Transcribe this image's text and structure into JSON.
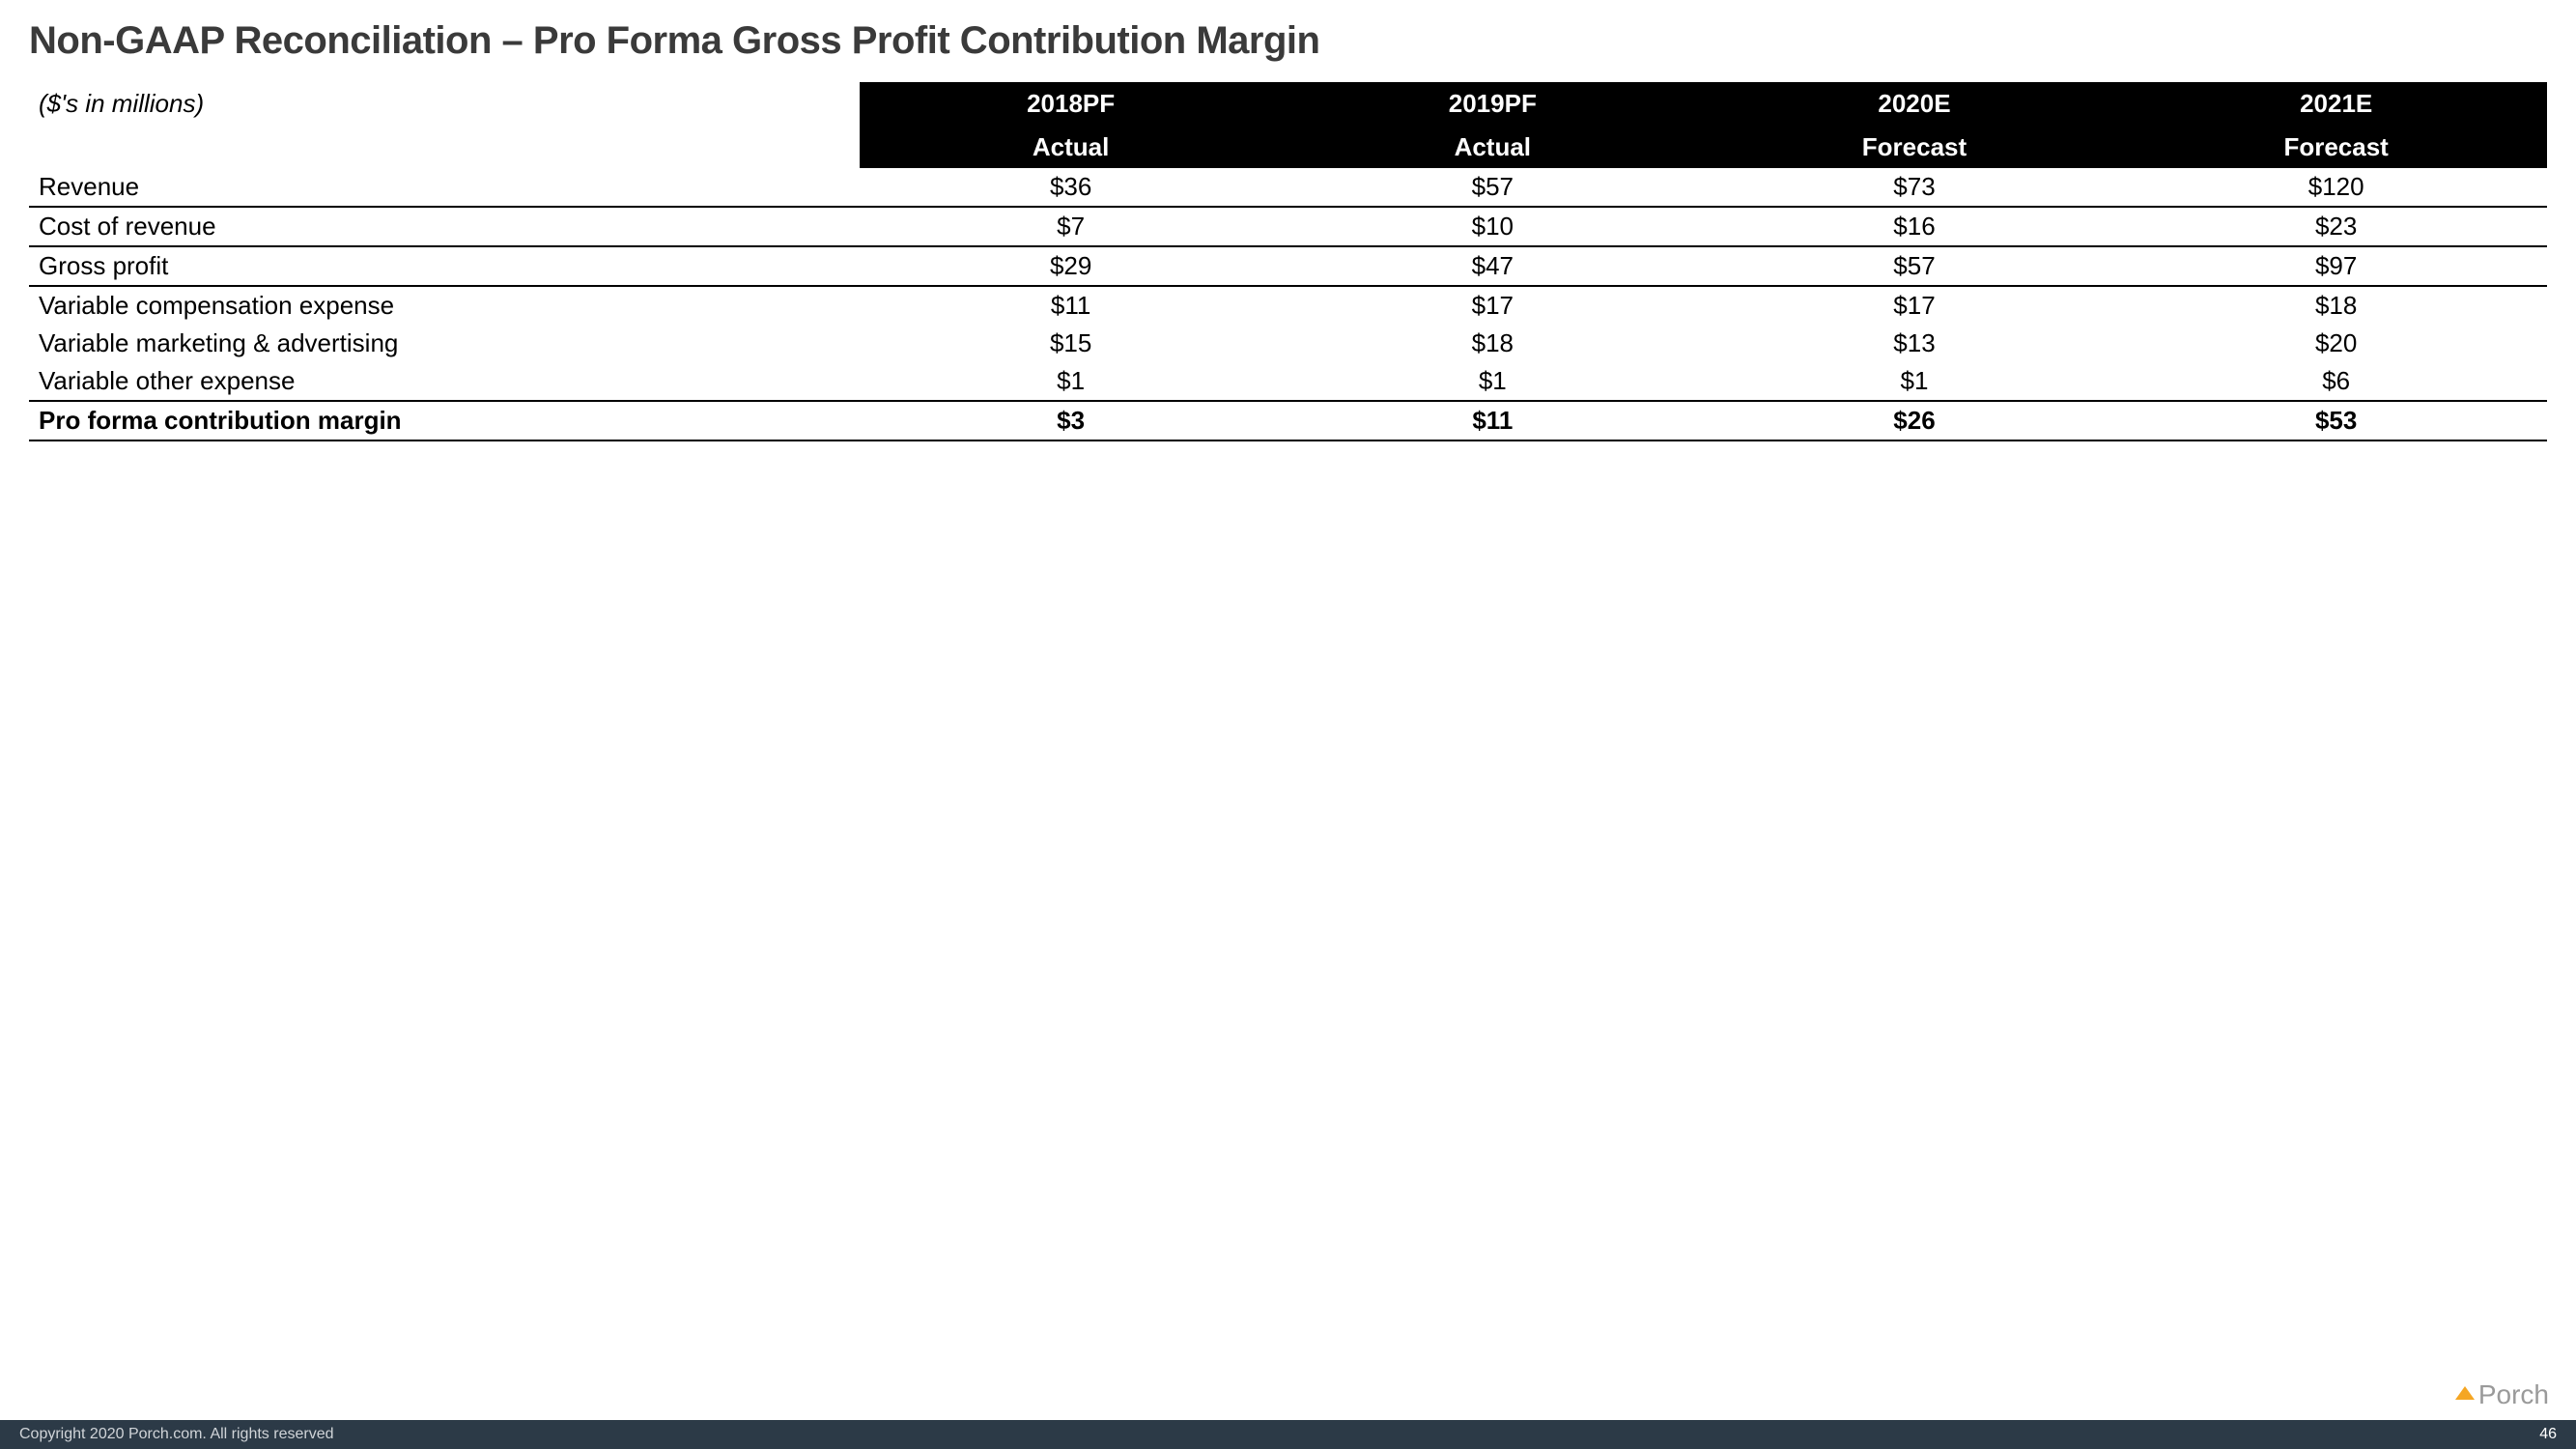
{
  "title": "Non-GAAP Reconciliation – Pro Forma Gross Profit Contribution Margin",
  "units_label": "($'s in millions)",
  "table": {
    "type": "table",
    "background_color": "#ffffff",
    "header_bg": "#000000",
    "header_fg": "#ffffff",
    "border_color": "#000000",
    "font_size": 26,
    "columns": [
      {
        "year_label": "2018PF",
        "period_label": "Actual"
      },
      {
        "year_label": "2019PF",
        "period_label": "Actual"
      },
      {
        "year_label": "2020E",
        "period_label": "Forecast"
      },
      {
        "year_label": "2021E",
        "period_label": "Forecast"
      }
    ],
    "rows": [
      {
        "label": "Revenue",
        "vals": [
          "$36",
          "$57",
          "$73",
          "$120"
        ],
        "sep_after": true,
        "bold": false
      },
      {
        "label": "Cost of revenue",
        "vals": [
          "$7",
          "$10",
          "$16",
          "$23"
        ],
        "sep_after": true,
        "bold": false
      },
      {
        "label": "Gross profit",
        "vals": [
          "$29",
          "$47",
          "$57",
          "$97"
        ],
        "sep_after": true,
        "bold": false
      },
      {
        "label": "Variable compensation expense",
        "vals": [
          "$11",
          "$17",
          "$17",
          "$18"
        ],
        "sep_after": false,
        "bold": false
      },
      {
        "label": "Variable marketing & advertising",
        "vals": [
          "$15",
          "$18",
          "$13",
          "$20"
        ],
        "sep_after": false,
        "bold": false
      },
      {
        "label": "Variable other expense",
        "vals": [
          "$1",
          "$1",
          "$1",
          "$6"
        ],
        "sep_after": true,
        "bold": false
      },
      {
        "label": "Pro forma contribution margin",
        "vals": [
          "$3",
          "$11",
          "$26",
          "$53"
        ],
        "sep_after": true,
        "bold": true
      }
    ]
  },
  "logo": {
    "text": "Porch",
    "caret_color": "#f5a623",
    "text_color": "#9a9a9a"
  },
  "footer": {
    "copyright": "Copyright 2020 Porch.com. All rights reserved",
    "page": "46",
    "bg": "#2c3a47",
    "fg": "#d0d4d8"
  }
}
